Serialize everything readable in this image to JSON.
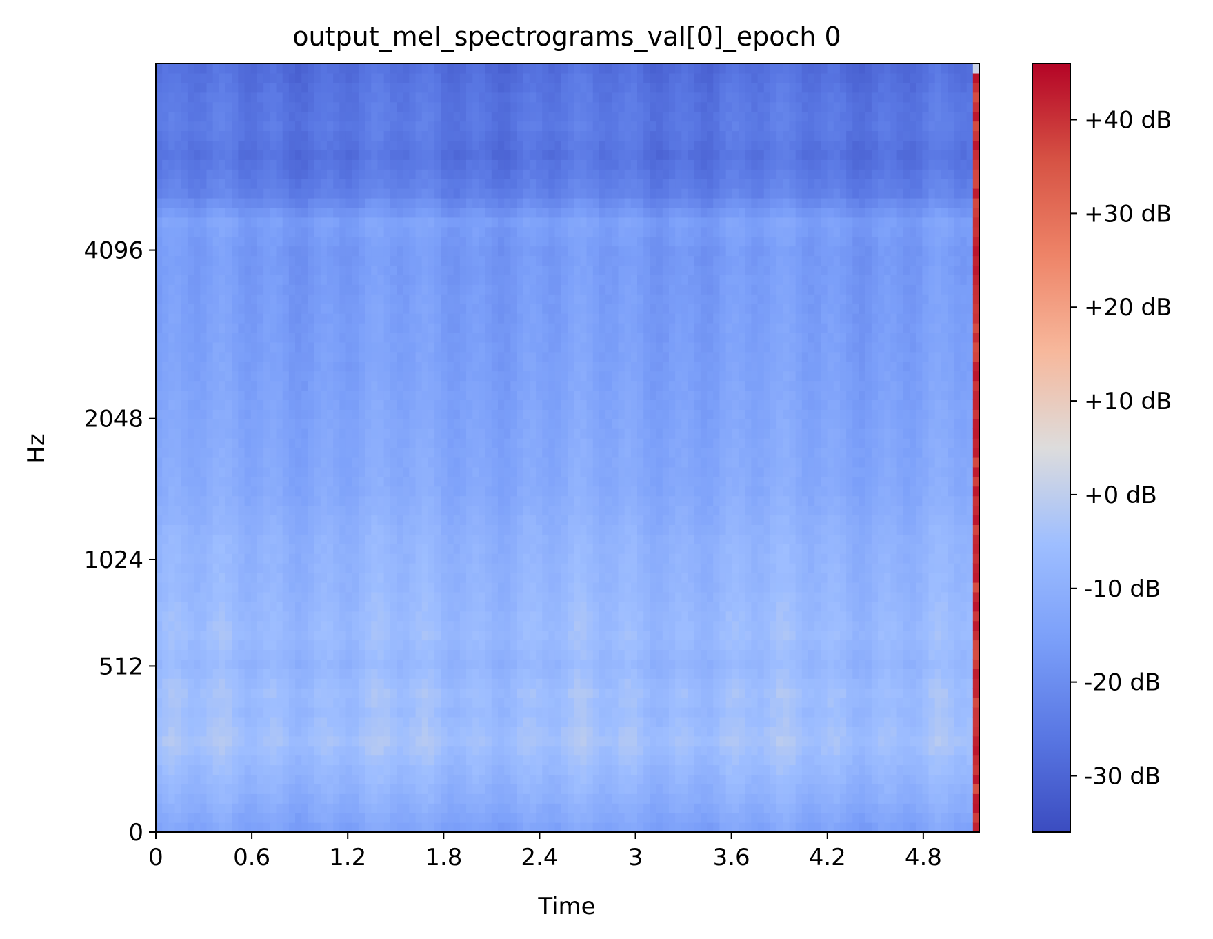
{
  "chart_data": {
    "type": "heatmap",
    "title": "output_mel_spectrograms_val[0]_epoch 0",
    "xlabel": "Time",
    "ylabel": "Hz",
    "xlim": [
      0,
      5.15
    ],
    "x_ticks": [
      "0",
      "0.6",
      "1.2",
      "1.8",
      "2.4",
      "3",
      "3.6",
      "4.2",
      "4.8"
    ],
    "x_tick_values": [
      0,
      0.6,
      1.2,
      1.8,
      2.4,
      3,
      3.6,
      4.2,
      4.8
    ],
    "y_scale": "mel",
    "y_ticks": [
      "0",
      "512",
      "1024",
      "2048",
      "4096"
    ],
    "y_tick_values": [
      0,
      512,
      1024,
      2048,
      4096
    ],
    "colormap": "coolwarm",
    "colorbar": {
      "range": [
        -36,
        46
      ],
      "ticks": [
        "-30 dB",
        "-20 dB",
        "-10 dB",
        "+0 dB",
        "+10 dB",
        "+20 dB",
        "+30 dB",
        "+40 dB"
      ],
      "tick_values": [
        -30,
        -20,
        -10,
        0,
        10,
        20,
        30,
        40
      ]
    },
    "grid": false,
    "frames": 130,
    "mel_bins": 80,
    "last_frame_db": 40,
    "band_profile_db": [
      [
        0,
        -14
      ],
      [
        3,
        -10
      ],
      [
        6,
        -7
      ],
      [
        9,
        -4
      ],
      [
        12,
        -6
      ],
      [
        14,
        -5
      ],
      [
        17,
        -8
      ],
      [
        20,
        -6
      ],
      [
        25,
        -8
      ],
      [
        30,
        -9
      ],
      [
        35,
        -12
      ],
      [
        40,
        -13
      ],
      [
        48,
        -15
      ],
      [
        55,
        -16
      ],
      [
        60,
        -17
      ],
      [
        63,
        -15
      ],
      [
        66,
        -23
      ],
      [
        70,
        -27
      ],
      [
        73,
        -25
      ],
      [
        76,
        -26
      ],
      [
        79,
        -28
      ]
    ]
  }
}
